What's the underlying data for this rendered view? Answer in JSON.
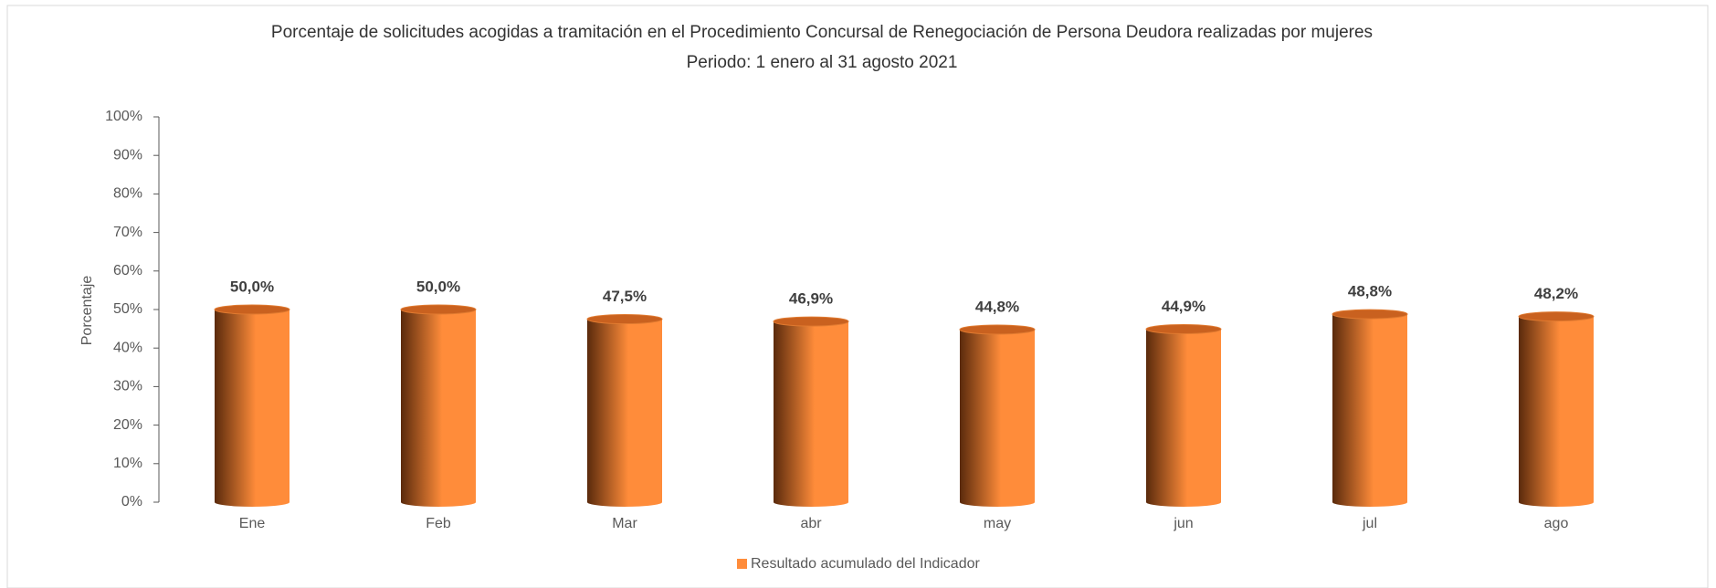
{
  "chart_data": {
    "type": "bar",
    "title": "Porcentaje de solicitudes acogidas a tramitación en el Procedimiento Concursal de Renegociación de Persona Deudora realizadas por mujeres",
    "subtitle": "Periodo: 1 enero al 31 agosto 2021",
    "y_label": "Porcentaje",
    "categories": [
      "Ene",
      "Feb",
      "Mar",
      "abr",
      "may",
      "jun",
      "jul",
      "ago"
    ],
    "series": [
      {
        "name": "Resultado acumulado del Indicador",
        "color": "#ff8c3a",
        "values": [
          50.0,
          50.0,
          47.5,
          46.9,
          44.8,
          44.9,
          48.8,
          48.2
        ],
        "value_labels": [
          "50,0%",
          "50,0%",
          "47,5%",
          "46,9%",
          "44,8%",
          "44,9%",
          "48,8%",
          "48,2%"
        ]
      }
    ],
    "ylim": [
      0,
      100
    ],
    "yticks": [
      {
        "value": 0,
        "label": "0%"
      },
      {
        "value": 10,
        "label": "10%"
      },
      {
        "value": 20,
        "label": "20%"
      },
      {
        "value": 30,
        "label": "30%"
      },
      {
        "value": 40,
        "label": "40%"
      },
      {
        "value": 50,
        "label": "50%"
      },
      {
        "value": 60,
        "label": "60%"
      },
      {
        "value": 70,
        "label": "70%"
      },
      {
        "value": 80,
        "label": "80%"
      },
      {
        "value": 90,
        "label": "90%"
      },
      {
        "value": 100,
        "label": "100%"
      }
    ],
    "grid": false,
    "legend": "bottom"
  }
}
